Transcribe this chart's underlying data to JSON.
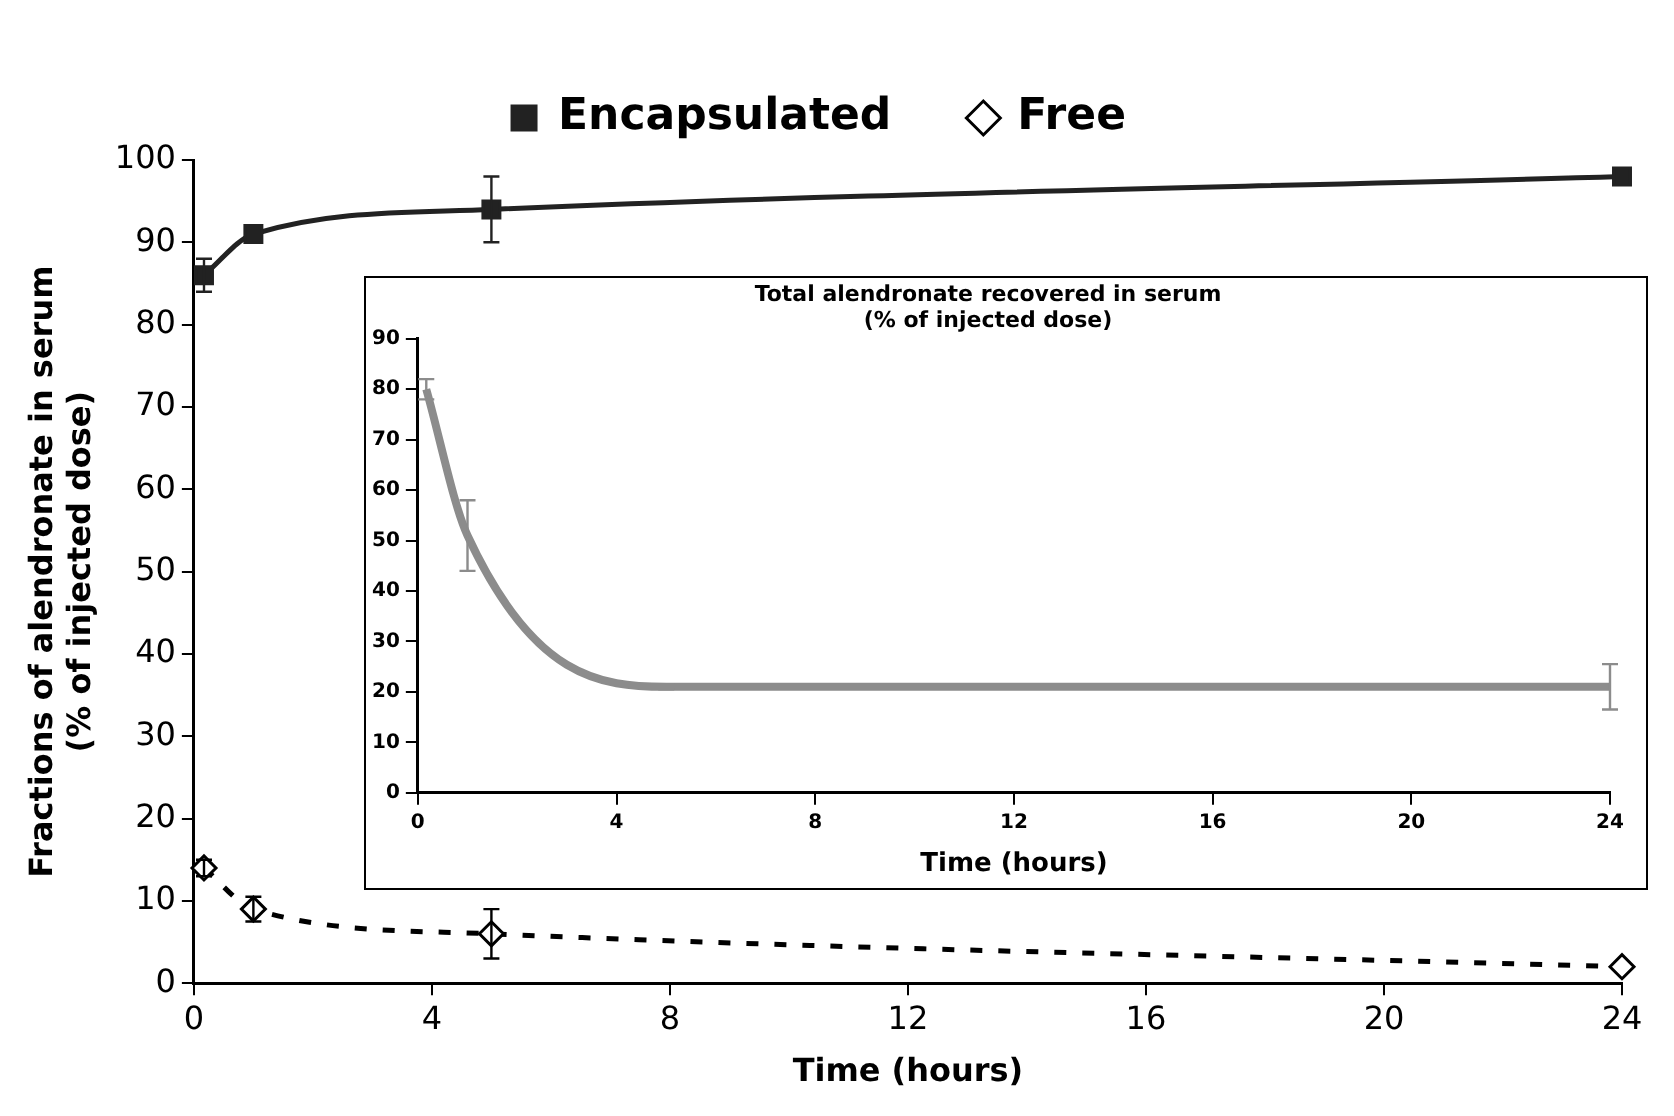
{
  "chart_data": [
    {
      "type": "line",
      "xlabel": "Time (hours)",
      "ylabel": "Fractions of alendronate in serum (% of injected dose)",
      "xlim": [
        0,
        24
      ],
      "xticks": [
        0,
        4,
        8,
        12,
        16,
        20,
        24
      ],
      "ylim": [
        0,
        100
      ],
      "yticks": [
        0,
        10,
        20,
        30,
        40,
        50,
        60,
        70,
        80,
        90,
        100
      ],
      "grid": false,
      "legend": "top",
      "series": [
        {
          "name": "Encapsulated",
          "color": "#222222",
          "marker": "square",
          "line_style": "solid",
          "x": [
            0.17,
            1,
            5,
            24
          ],
          "values": [
            86,
            91,
            94,
            98
          ],
          "errors": [
            2,
            null,
            4,
            null
          ]
        },
        {
          "name": "Free",
          "color": "#000000",
          "marker": "diamond",
          "line_style": "dashed",
          "x": [
            0.17,
            1,
            5,
            24
          ],
          "values": [
            14,
            9,
            6,
            2
          ],
          "errors": [
            1,
            1.5,
            3,
            null
          ]
        }
      ]
    },
    {
      "type": "line",
      "title": "Total alendronate recovered in serum (% of injected dose)",
      "xlabel": "Time (hours)",
      "xlim": [
        0,
        24
      ],
      "xticks": [
        0,
        4,
        8,
        12,
        16,
        20,
        24
      ],
      "ylim": [
        0,
        90
      ],
      "yticks": [
        0,
        10,
        20,
        30,
        40,
        50,
        60,
        70,
        80,
        90
      ],
      "grid": false,
      "legend": false,
      "series": [
        {
          "color": "#8c8c8c",
          "marker": "none",
          "line_style": "solid",
          "x": [
            0.17,
            1,
            5,
            24
          ],
          "values": [
            80,
            51,
            21,
            21
          ],
          "errors": [
            2,
            7,
            0.5,
            4.5
          ]
        }
      ]
    }
  ]
}
